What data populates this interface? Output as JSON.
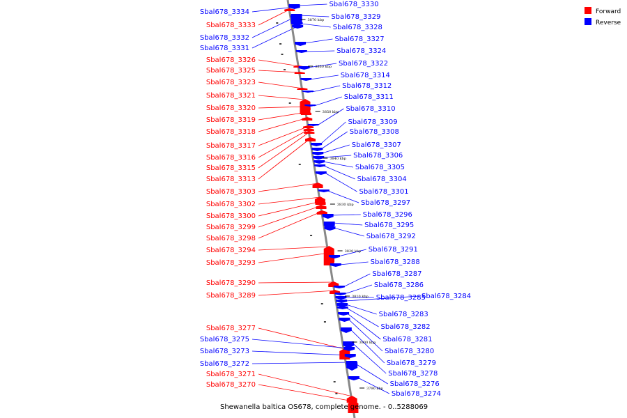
{
  "caption": "Shewanella baltica OS678, complete genome. - 0..5288069",
  "colors": {
    "forward": "#ff0000",
    "reverse": "#0000ff",
    "backbone": "#888888"
  },
  "legend": [
    {
      "label": "Forward",
      "strand": "forward"
    },
    {
      "label": "Reverse",
      "strand": "reverse"
    }
  ],
  "ticks": [
    "3870 kbp",
    "3860 kbp",
    "3850 kbp",
    "3840 kbp",
    "3830 kbp",
    "3820 kbp",
    "3810 kbp",
    "3800 kbp",
    "3790 kbp"
  ],
  "forward_labels": [
    "Sbal678_3333",
    "Sbal678_3326",
    "Sbal678_3325",
    "Sbal678_3323",
    "Sbal678_3321",
    "Sbal678_3320",
    "Sbal678_3319",
    "Sbal678_3318",
    "Sbal678_3317",
    "Sbal678_3316",
    "Sbal678_3315",
    "Sbal678_3313",
    "Sbal678_3303",
    "Sbal678_3302",
    "Sbal678_3300",
    "Sbal678_3299",
    "Sbal678_3298",
    "Sbal678_3294",
    "Sbal678_3293",
    "Sbal678_3290",
    "Sbal678_3289",
    "Sbal678_3277",
    "Sbal678_3271",
    "Sbal678_3270"
  ],
  "reverse_left_labels": [
    "Sbal678_3334",
    "Sbal678_3332",
    "Sbal678_3331",
    "Sbal678_3275",
    "Sbal678_3273",
    "Sbal678_3272"
  ],
  "reverse_right_labels": [
    "Sbal678_3330",
    "Sbal678_3329",
    "Sbal678_3328",
    "Sbal678_3327",
    "Sbal678_3324",
    "Sbal678_3322",
    "Sbal678_3314",
    "Sbal678_3312",
    "Sbal678_3311",
    "Sbal678_3310",
    "Sbal678_3309",
    "Sbal678_3308",
    "Sbal678_3307",
    "Sbal678_3306",
    "Sbal678_3305",
    "Sbal678_3304",
    "Sbal678_3301",
    "Sbal678_3297",
    "Sbal678_3296",
    "Sbal678_3295",
    "Sbal678_3292",
    "Sbal678_3291",
    "Sbal678_3288",
    "Sbal678_3287",
    "Sbal678_3286",
    "Sbal678_3285",
    "Sbal678_3284",
    "Sbal678_3283",
    "Sbal678_3282",
    "Sbal678_3281",
    "Sbal678_3280",
    "Sbal678_3279",
    "Sbal678_3278",
    "Sbal678_3276",
    "Sbal678_3274"
  ]
}
